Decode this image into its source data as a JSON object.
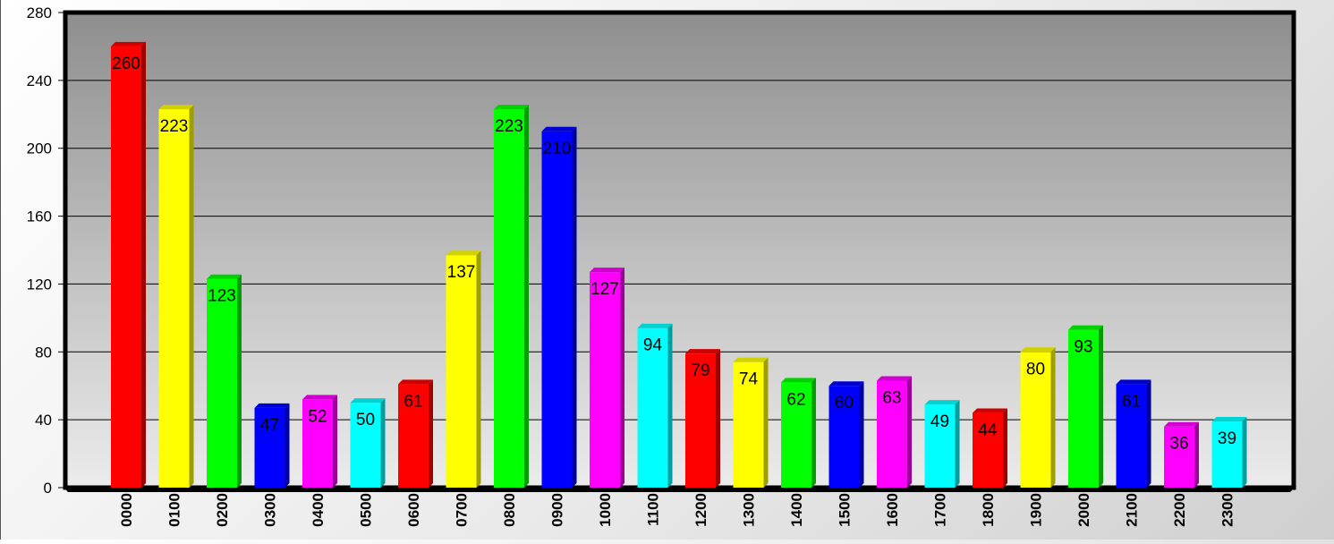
{
  "chart_data": {
    "type": "bar",
    "title": "",
    "xlabel": "",
    "ylabel": "",
    "ylim": [
      0,
      280
    ],
    "yticks": [
      0,
      40,
      80,
      120,
      160,
      200,
      240,
      280
    ],
    "grid": true,
    "legend": "none",
    "categories": [
      "0000",
      "0100",
      "0200",
      "0300",
      "0400",
      "0500",
      "0600",
      "0700",
      "0800",
      "0900",
      "1000",
      "1100",
      "1200",
      "1300",
      "1400",
      "1500",
      "1600",
      "1700",
      "1800",
      "1900",
      "2000",
      "2100",
      "2200",
      "2300"
    ],
    "values": [
      260,
      223,
      123,
      47,
      52,
      50,
      61,
      137,
      223,
      210,
      127,
      94,
      79,
      74,
      62,
      60,
      63,
      49,
      44,
      80,
      93,
      61,
      36,
      39
    ],
    "bar_colors": [
      "#ff0000",
      "#ffff00",
      "#00ff00",
      "#0000ff",
      "#ff00ff",
      "#00ffff",
      "#ff0000",
      "#ffff00",
      "#00ff00",
      "#0000ff",
      "#ff00ff",
      "#00ffff",
      "#ff0000",
      "#ffff00",
      "#00ff00",
      "#0000ff",
      "#ff00ff",
      "#00ffff",
      "#ff0000",
      "#ffff00",
      "#00ff00",
      "#0000ff",
      "#ff00ff",
      "#00ffff"
    ]
  }
}
